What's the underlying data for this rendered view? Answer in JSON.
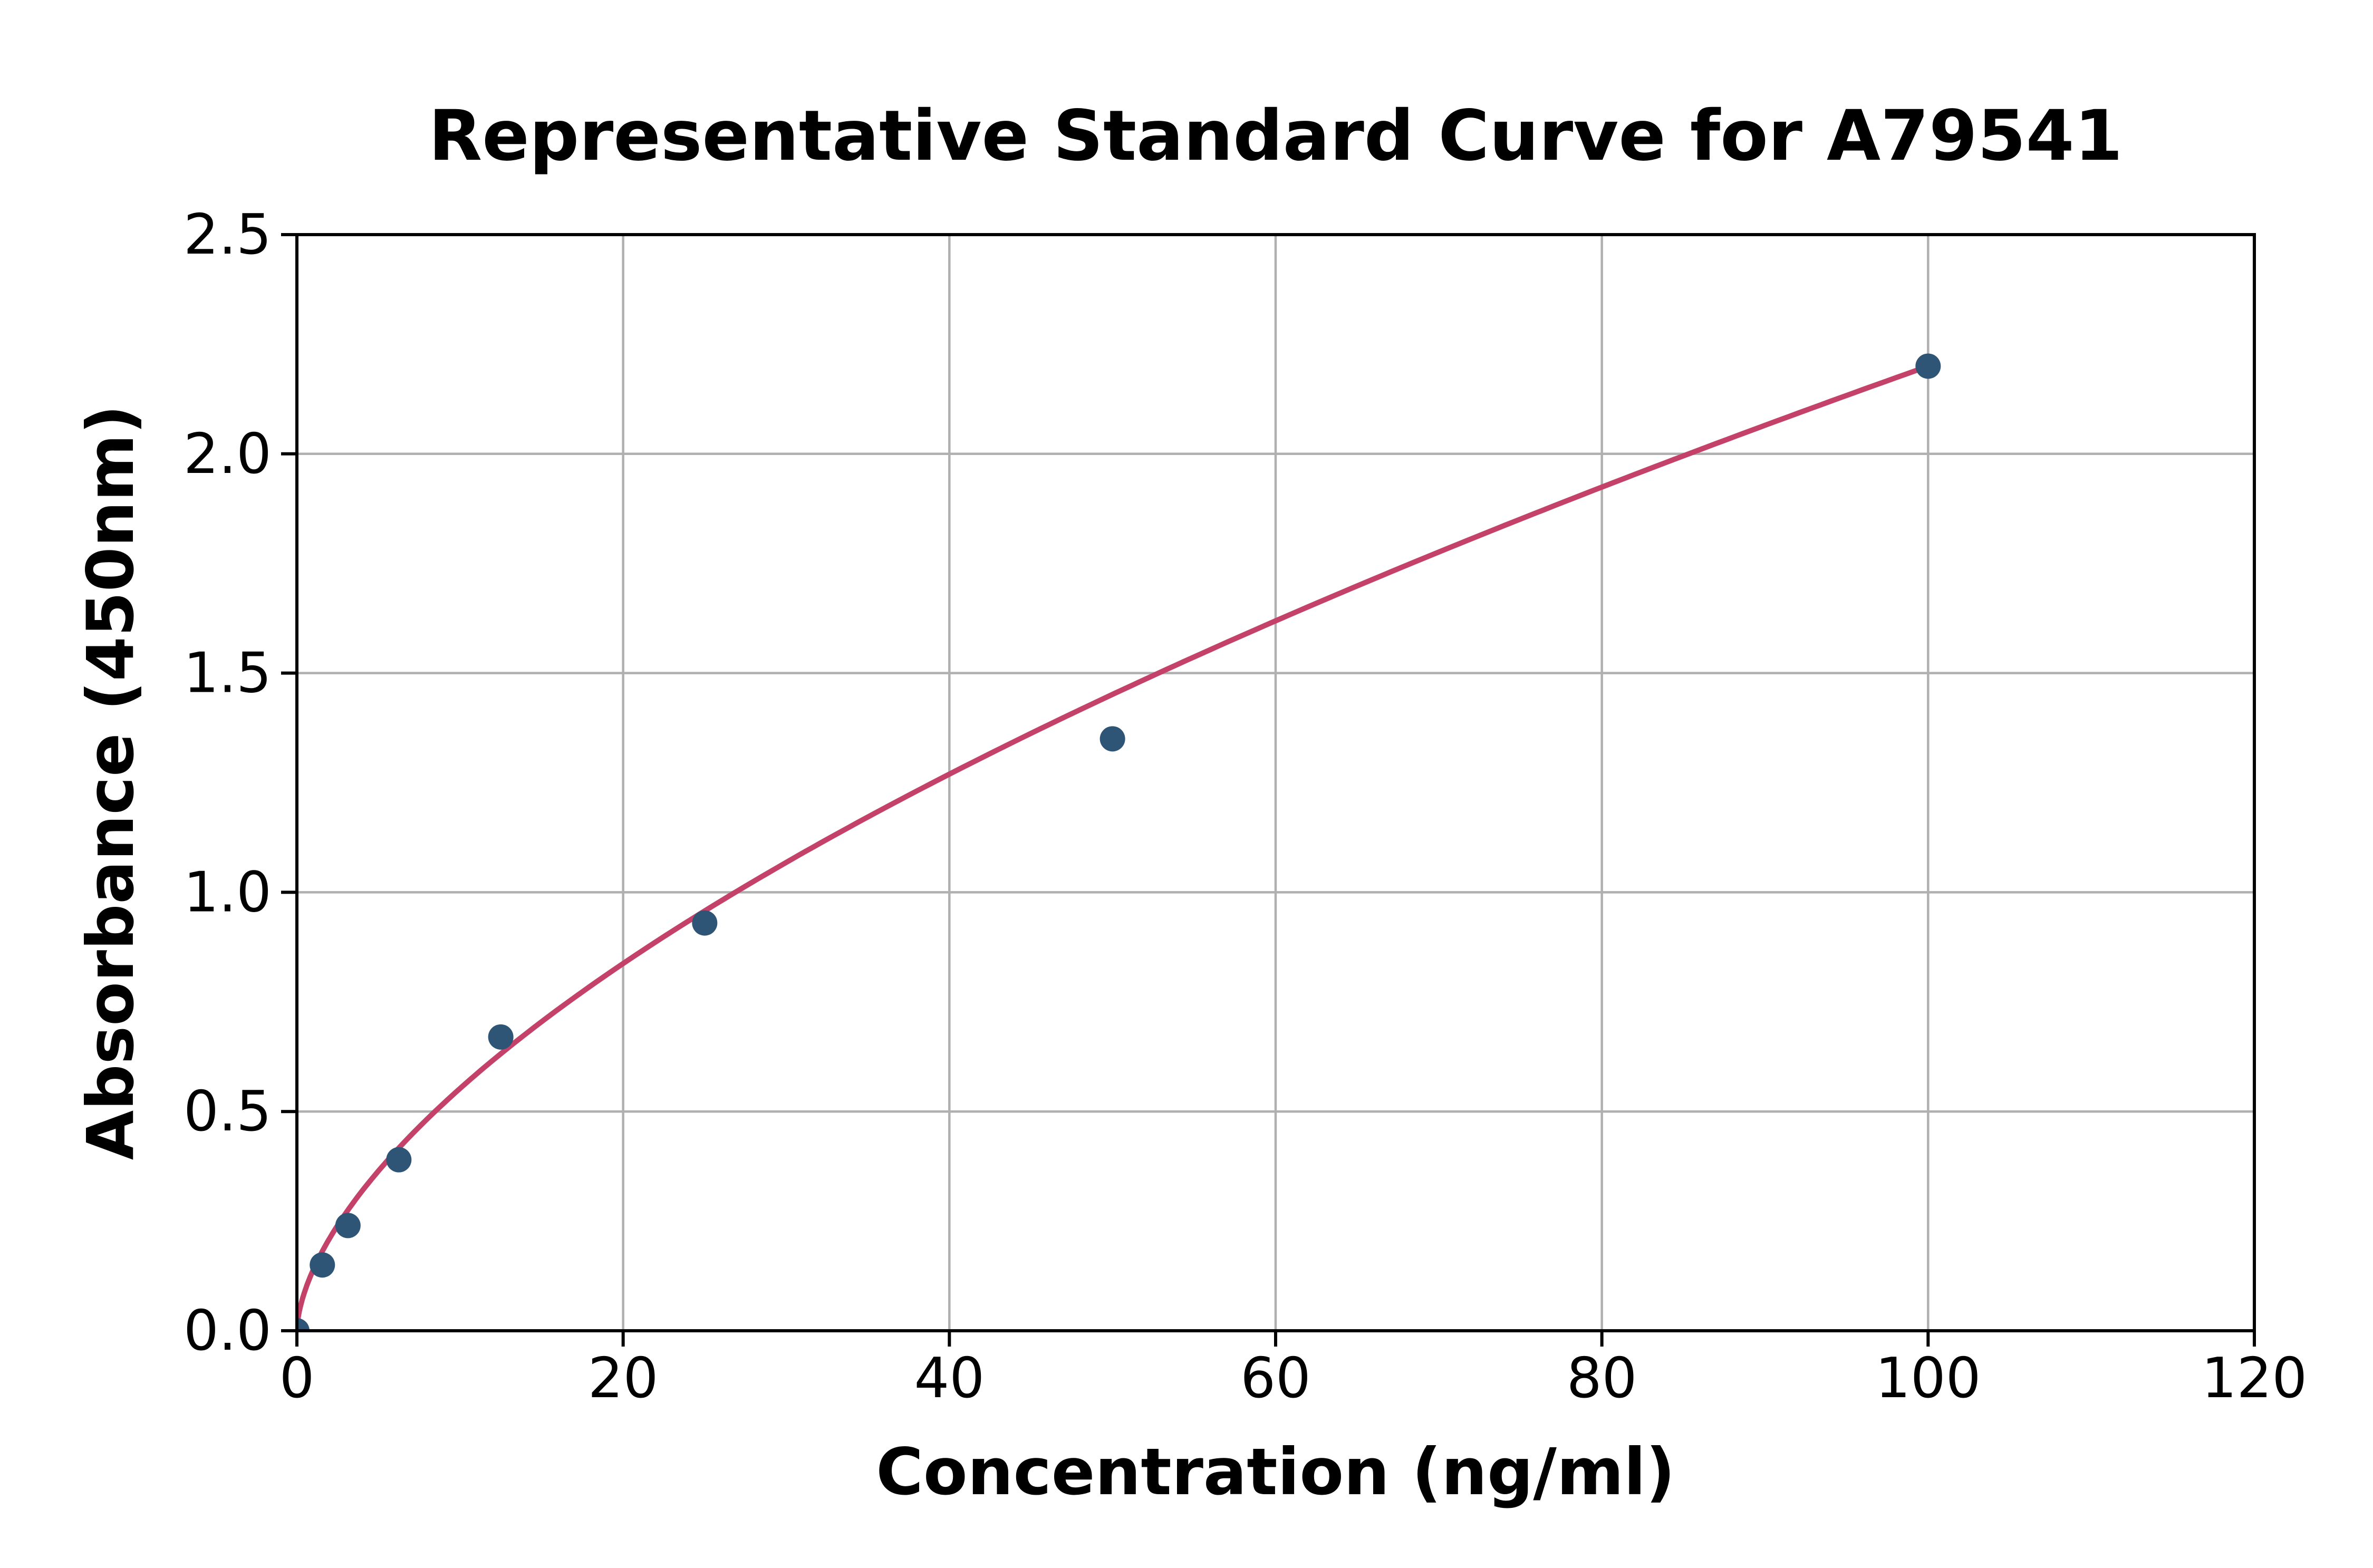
{
  "chart_data": {
    "type": "scatter",
    "title": "Representative Standard Curve for A79541",
    "xlabel": "Concentration (ng/ml)",
    "ylabel": "Absorbance (450nm)",
    "xlim": [
      0,
      120
    ],
    "ylim": [
      0,
      2.5
    ],
    "x_ticks": [
      0,
      20,
      40,
      60,
      80,
      100,
      120
    ],
    "x_tick_labels": [
      "0",
      "20",
      "40",
      "60",
      "80",
      "100",
      "120"
    ],
    "y_ticks": [
      0,
      0.5,
      1.0,
      1.5,
      2.0,
      2.5
    ],
    "y_tick_labels": [
      "0.0",
      "0.5",
      "1.0",
      "1.5",
      "2.0",
      "2.5"
    ],
    "grid": true,
    "legend_position": "none",
    "series": [
      {
        "name": "standards",
        "type": "scatter",
        "points": [
          {
            "x": 0,
            "y": 0.0
          },
          {
            "x": 1.56,
            "y": 0.15
          },
          {
            "x": 3.13,
            "y": 0.24
          },
          {
            "x": 6.25,
            "y": 0.39
          },
          {
            "x": 12.5,
            "y": 0.67
          },
          {
            "x": 25,
            "y": 0.93
          },
          {
            "x": 50,
            "y": 1.35
          },
          {
            "x": 100,
            "y": 2.2
          }
        ]
      },
      {
        "name": "fitted-curve",
        "type": "line",
        "fit": {
          "kind": "power",
          "a": 0.1388,
          "b": 0.6,
          "x_start": 0,
          "x_end": 100
        }
      }
    ],
    "colors": {
      "marker": "#2e5476",
      "curve": "#c4426a",
      "grid": "#b0b0b0",
      "axis": "#000000",
      "text": "#000000",
      "background": "#ffffff"
    }
  }
}
